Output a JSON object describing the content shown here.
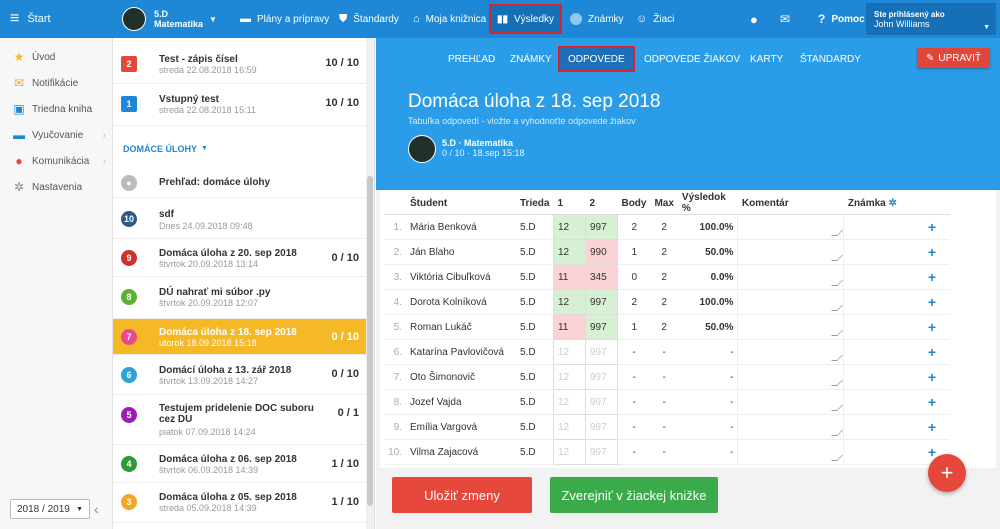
{
  "topbar": {
    "start": "Štart",
    "class_code": "5.D",
    "class_subject": "Matematika",
    "plans": "Plány a prípravy",
    "standards": "Štandardy",
    "library": "Moja knižnica",
    "results": "Výsledky",
    "grades": "Známky",
    "students": "Žiaci",
    "help": "Pomoc",
    "logged_as": "Ste prihlásený ako",
    "user": "John Williams"
  },
  "sidebar": {
    "items": [
      "Úvod",
      "Notifikácie",
      "Triedna kniha",
      "Vyučovanie",
      "Komunikácia",
      "Nastavenia"
    ],
    "year": "2018 / 2019"
  },
  "list": {
    "section": "DOMÁCE ÚLOHY",
    "items": [
      {
        "num": "2",
        "title": "Test - zápis čísel",
        "sub": "streda 22.08.2018 16:59",
        "score": "10 / 10"
      },
      {
        "num": "1",
        "title": "Vstupný test",
        "sub": "streda 22.08.2018 15:11",
        "score": "10 / 10"
      },
      {
        "title": "Prehľad: domáce úlohy"
      },
      {
        "num": "10",
        "title": "sdf",
        "sub": "Dnes 24.09.2018 09:48",
        "score": ""
      },
      {
        "num": "9",
        "title": "Domáca úloha z 20. sep 2018",
        "sub": "štvrtok 20.09.2018 13:14",
        "score": "0 / 10"
      },
      {
        "num": "8",
        "title": "DÚ nahrať mi súbor .py",
        "sub": "štvrtok 20.09.2018 12:07",
        "score": ""
      },
      {
        "num": "7",
        "title": "Domáca úloha z 18. sep 2018",
        "sub": "utorok 18.09.2018 15:18",
        "score": "0 / 10"
      },
      {
        "num": "6",
        "title": "Domácí úloha z 13. zář 2018",
        "sub": "štvrtok 13.09.2018 14:27",
        "score": "0 / 10"
      },
      {
        "num": "5",
        "title": "Testujem pridelenie DOC suboru cez DU",
        "sub": "piatok 07.09.2018 14:24",
        "score": "0 / 1"
      },
      {
        "num": "4",
        "title": "Domáca úloha z 06. sep 2018",
        "sub": "štvrtok 06.09.2018 14:39",
        "score": "1 / 10"
      },
      {
        "num": "3",
        "title": "Domáca úloha z 05. sep 2018",
        "sub": "streda 05.09.2018 14:39",
        "score": "1 / 10"
      }
    ]
  },
  "tabs": {
    "overview": "PREHĽAD",
    "grades": "ZNÁMKY",
    "answers": "ODPOVEDE",
    "student_answers": "ODPOVEDE ŽIAKOV",
    "cards": "KARTY",
    "standards": "ŠTANDARDY",
    "edit": "UPRAVIŤ"
  },
  "hero": {
    "title": "Domáca úloha z 18. sep 2018",
    "subtitle": "Tabuľka odpovedí - vložte a vyhodnoťte odpovede žiakov",
    "class_name": "5.D · Matematika",
    "class_meta": "0 / 10 · 18.sep 15:18"
  },
  "table": {
    "headers": [
      "Študent",
      "Trieda",
      "1",
      "2",
      "Body",
      "Max",
      "Výsledok %",
      "Komentár",
      "Známka"
    ],
    "rows": [
      {
        "idx": "1.",
        "name": "Mária Benková",
        "cls": "5.D",
        "a1": "12",
        "a2": "997",
        "s1": "ok",
        "s2": "ok",
        "body": "2",
        "max": "2",
        "pct": "100.0%"
      },
      {
        "idx": "2.",
        "name": "Ján Blaho",
        "cls": "5.D",
        "a1": "12",
        "a2": "990",
        "s1": "ok",
        "s2": "bad",
        "body": "1",
        "max": "2",
        "pct": "50.0%"
      },
      {
        "idx": "3.",
        "name": "Viktória Cibuľková",
        "cls": "5.D",
        "a1": "11",
        "a2": "345",
        "s1": "bad",
        "s2": "bad",
        "body": "0",
        "max": "2",
        "pct": "0.0%"
      },
      {
        "idx": "4.",
        "name": "Dorota Kolníková",
        "cls": "5.D",
        "a1": "12",
        "a2": "997",
        "s1": "ok",
        "s2": "ok",
        "body": "2",
        "max": "2",
        "pct": "100.0%"
      },
      {
        "idx": "5.",
        "name": "Roman Lukáč",
        "cls": "5.D",
        "a1": "11",
        "a2": "997",
        "s1": "bad",
        "s2": "ok",
        "body": "1",
        "max": "2",
        "pct": "50.0%"
      },
      {
        "idx": "6.",
        "name": "Katarína Pavlovičová",
        "cls": "5.D",
        "a1": "12",
        "a2": "997",
        "s1": "pend",
        "s2": "pend",
        "body": "-",
        "max": "-",
        "pct": "-"
      },
      {
        "idx": "7.",
        "name": "Oto Šimonovič",
        "cls": "5.D",
        "a1": "12",
        "a2": "997",
        "s1": "pend",
        "s2": "pend",
        "body": "-",
        "max": "-",
        "pct": "-"
      },
      {
        "idx": "8.",
        "name": "Jozef Vajda",
        "cls": "5.D",
        "a1": "12",
        "a2": "997",
        "s1": "pend",
        "s2": "pend",
        "body": "-",
        "max": "-",
        "pct": "-"
      },
      {
        "idx": "9.",
        "name": "Emília Vargová",
        "cls": "5.D",
        "a1": "12",
        "a2": "997",
        "s1": "pend",
        "s2": "pend",
        "body": "-",
        "max": "-",
        "pct": "-"
      },
      {
        "idx": "10.",
        "name": "Vilma Zajacová",
        "cls": "5.D",
        "a1": "12",
        "a2": "997",
        "s1": "pend",
        "s2": "pend",
        "body": "-",
        "max": "-",
        "pct": "-"
      }
    ]
  },
  "actions": {
    "save": "Uložiť zmeny",
    "publish": "Zverejniť v žiackej knižke",
    "fab": "+"
  },
  "colors": {
    "topbar": "#1e88d6",
    "hero": "#2b9de8",
    "active_item": "#f5b826",
    "save": "#e5483b",
    "publish": "#3aaa4a"
  }
}
